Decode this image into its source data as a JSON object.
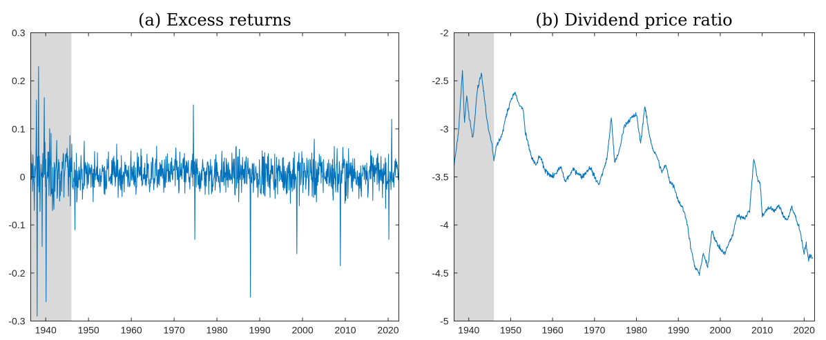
{
  "figure": {
    "panel_a_title": "(a) Excess returns",
    "panel_b_title": "(b) Dividend price ratio"
  },
  "colors": {
    "series": "#0072bd",
    "shade": "#d9d9d9",
    "axis": "#262626"
  },
  "chart_data": [
    {
      "type": "line",
      "title": "(a) Excess returns",
      "xlabel": "",
      "ylabel": "",
      "xlim": [
        1936.5,
        2022.5
      ],
      "ylim": [
        -0.3,
        0.3
      ],
      "x_ticks": [
        1940,
        1950,
        1960,
        1970,
        1980,
        1990,
        2000,
        2010,
        2020
      ],
      "x_tick_labels": [
        "1940",
        "1950",
        "1960",
        "1970",
        "1980",
        "1990",
        "2000",
        "2010",
        "2020"
      ],
      "y_ticks": [
        -0.3,
        -0.2,
        -0.1,
        0,
        0.1,
        0.2,
        0.3
      ],
      "y_tick_labels": [
        "-0.3",
        "-0.2",
        "-0.1",
        "0",
        "0.1",
        "0.2",
        "0.3"
      ],
      "shaded_region": [
        1936.5,
        1946
      ],
      "grid": false,
      "series": [
        {
          "frequency": "monthly",
          "features": [
            {
              "x": 1937.8,
              "y": 0.16
            },
            {
              "x": 1938.0,
              "y": -0.29
            },
            {
              "x": 1938.3,
              "y": 0.23
            },
            {
              "x": 1939.2,
              "y": -0.145
            },
            {
              "x": 1939.7,
              "y": 0.165
            },
            {
              "x": 1940.1,
              "y": -0.26
            },
            {
              "x": 1946.8,
              "y": -0.11
            },
            {
              "x": 1974.5,
              "y": 0.15
            },
            {
              "x": 1974.8,
              "y": -0.13
            },
            {
              "x": 1987.8,
              "y": -0.25
            },
            {
              "x": 1998.7,
              "y": -0.16
            },
            {
              "x": 2008.8,
              "y": -0.185
            },
            {
              "x": 2020.2,
              "y": -0.13
            },
            {
              "x": 2020.8,
              "y": 0.12
            }
          ]
        }
      ]
    },
    {
      "type": "line",
      "title": "(b) Dividend price ratio",
      "xlabel": "",
      "ylabel": "",
      "xlim": [
        1936.5,
        2022.5
      ],
      "ylim": [
        -5,
        -2
      ],
      "x_ticks": [
        1940,
        1950,
        1960,
        1970,
        1980,
        1990,
        2000,
        2010,
        2020
      ],
      "x_tick_labels": [
        "1940",
        "1950",
        "1960",
        "1970",
        "1980",
        "1990",
        "2000",
        "2010",
        "2020"
      ],
      "y_ticks": [
        -5,
        -4.5,
        -4,
        -3.5,
        -3,
        -2.5,
        -2
      ],
      "y_tick_labels": [
        "-5",
        "-4.5",
        "-4",
        "-3.5",
        "-3",
        "-2.5",
        "-2"
      ],
      "shaded_region": [
        1936.5,
        1946
      ],
      "grid": false,
      "series": [
        {
          "frequency": "monthly",
          "x": [
            1936.5,
            1937.5,
            1938.5,
            1939.0,
            1939.5,
            1940.0,
            1941.0,
            1942.0,
            1943.0,
            1943.5,
            1944.5,
            1945.5,
            1946.0,
            1946.5,
            1948.0,
            1949.0,
            1950.0,
            1951.0,
            1952.0,
            1953.0,
            1953.5,
            1955.0,
            1956.0,
            1957.0,
            1958.0,
            1960.0,
            1962.0,
            1963.0,
            1965.0,
            1967.0,
            1969.0,
            1970.0,
            1971.0,
            1972.0,
            1973.0,
            1974.0,
            1974.8,
            1976.0,
            1977.0,
            1978.0,
            1979.0,
            1980.0,
            1981.0,
            1982.0,
            1983.0,
            1984.0,
            1985.0,
            1986.0,
            1987.0,
            1988.0,
            1989.0,
            1990.0,
            1991.0,
            1992.0,
            1993.0,
            1994.0,
            1995.0,
            1996.0,
            1997.0,
            1998.0,
            1999.0,
            2000.0,
            2001.0,
            2002.0,
            2003.0,
            2004.0,
            2005.0,
            2006.0,
            2007.0,
            2008.0,
            2009.0,
            2009.5,
            2010.0,
            2011.0,
            2012.0,
            2013.0,
            2014.0,
            2015.0,
            2016.0,
            2017.0,
            2018.0,
            2019.0,
            2020.0,
            2020.5,
            2021.0,
            2021.5,
            2022.0
          ],
          "y": [
            -3.38,
            -3.05,
            -2.4,
            -2.95,
            -2.65,
            -2.85,
            -3.1,
            -2.6,
            -2.42,
            -2.6,
            -2.95,
            -3.15,
            -3.32,
            -3.2,
            -3.05,
            -2.85,
            -2.7,
            -2.62,
            -2.75,
            -2.8,
            -3.05,
            -3.3,
            -3.38,
            -3.28,
            -3.42,
            -3.5,
            -3.4,
            -3.55,
            -3.42,
            -3.5,
            -3.4,
            -3.5,
            -3.58,
            -3.45,
            -3.3,
            -2.88,
            -3.35,
            -3.22,
            -2.98,
            -2.92,
            -2.88,
            -2.85,
            -3.15,
            -2.76,
            -3.05,
            -3.22,
            -3.3,
            -3.45,
            -3.38,
            -3.55,
            -3.6,
            -3.75,
            -3.82,
            -3.95,
            -4.25,
            -4.45,
            -4.5,
            -4.3,
            -4.45,
            -4.05,
            -4.18,
            -4.25,
            -4.3,
            -4.2,
            -4.1,
            -3.9,
            -3.92,
            -3.92,
            -3.85,
            -3.3,
            -3.55,
            -3.55,
            -3.9,
            -3.85,
            -3.82,
            -3.85,
            -3.8,
            -3.9,
            -3.95,
            -3.82,
            -3.92,
            -4.05,
            -4.3,
            -4.2,
            -4.35,
            -4.32,
            -4.35
          ]
        }
      ]
    }
  ]
}
